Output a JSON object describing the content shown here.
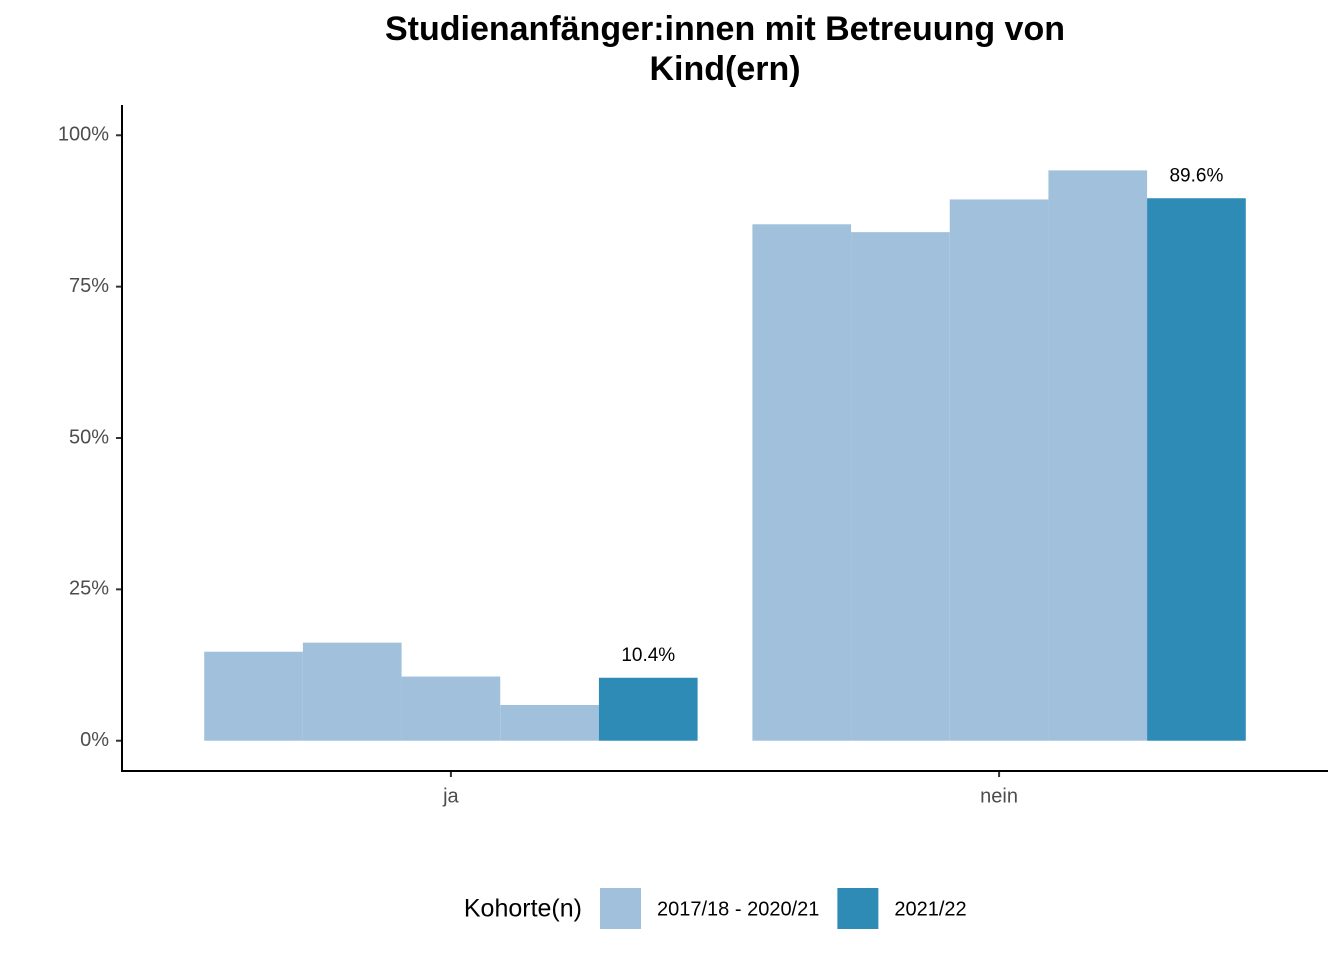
{
  "chart_data": {
    "type": "bar",
    "title": [
      "Studienanfänger:innen mit Betreuung von",
      "Kind(ern)"
    ],
    "categories": [
      "ja",
      "nein"
    ],
    "series": [
      {
        "name": "2017/18 - 2020/21",
        "color": "#a0c0dc",
        "values": [
          [
            14.7,
            16.2,
            10.6,
            5.9
          ],
          [
            85.3,
            84.0,
            89.4,
            94.2
          ]
        ]
      },
      {
        "name": "2021/22",
        "color": "#2e8bb5",
        "values": [
          10.4,
          89.6
        ],
        "value_labels": [
          "10.4%",
          "89.6%"
        ]
      }
    ],
    "ylim": [
      -5,
      105
    ],
    "yticks": [
      {
        "value": 0,
        "label": "0%"
      },
      {
        "value": 25,
        "label": "25%"
      },
      {
        "value": 50,
        "label": "50%"
      },
      {
        "value": 75,
        "label": "75%"
      },
      {
        "value": 100,
        "label": "100%"
      }
    ],
    "legend_title": "Kohorte(n)",
    "legend_position": "bottom",
    "grid": false
  }
}
